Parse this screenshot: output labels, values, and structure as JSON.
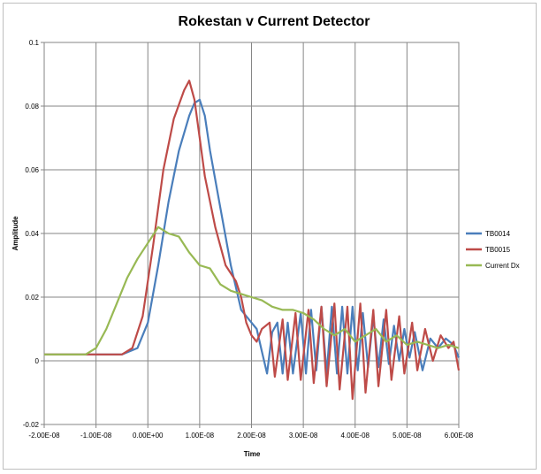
{
  "chart_data": {
    "type": "line",
    "title": "Rokestan v Current Detector",
    "xlabel": "Time",
    "ylabel": "Amplitude",
    "xlim": [
      -2e-08,
      6e-08
    ],
    "ylim": [
      -0.02,
      0.1
    ],
    "x_ticks": [
      -2e-08,
      -1e-08,
      0,
      1e-08,
      2e-08,
      3e-08,
      4e-08,
      5e-08,
      6e-08
    ],
    "x_tick_labels": [
      "-2.00E-08",
      "-1.00E-08",
      "0.00E+00",
      "1.00E-08",
      "2.00E-08",
      "3.00E-08",
      "4.00E-08",
      "5.00E-08",
      "6.00E-08"
    ],
    "y_ticks": [
      -0.02,
      0,
      0.02,
      0.04,
      0.06,
      0.08,
      0.1
    ],
    "y_tick_labels": [
      "-0.02",
      "0",
      "0.02",
      "0.04",
      "0.06",
      "0.08",
      "0.1"
    ],
    "grid": "horizontal-and-vertical",
    "legend_position": "right",
    "series": [
      {
        "name": "TB0014",
        "color": "#4a7ebb",
        "points": [
          [
            -2e-08,
            0.002
          ],
          [
            -1.5e-08,
            0.002
          ],
          [
            -1e-08,
            0.002
          ],
          [
            -5e-09,
            0.002
          ],
          [
            -2e-09,
            0.004
          ],
          [
            0,
            0.012
          ],
          [
            2e-09,
            0.03
          ],
          [
            4e-09,
            0.05
          ],
          [
            6e-09,
            0.066
          ],
          [
            8e-09,
            0.077
          ],
          [
            9e-09,
            0.081
          ],
          [
            1e-08,
            0.082
          ],
          [
            1.1e-08,
            0.077
          ],
          [
            1.2e-08,
            0.066
          ],
          [
            1.4e-08,
            0.048
          ],
          [
            1.6e-08,
            0.03
          ],
          [
            1.8e-08,
            0.016
          ],
          [
            2e-08,
            0.012
          ],
          [
            2.1e-08,
            0.01
          ],
          [
            2.2e-08,
            0.003
          ],
          [
            2.3e-08,
            -0.004
          ],
          [
            2.4e-08,
            0.009
          ],
          [
            2.5e-08,
            0.012
          ],
          [
            2.6e-08,
            -0.004
          ],
          [
            2.7e-08,
            0.012
          ],
          [
            2.8e-08,
            -0.004
          ],
          [
            2.95e-08,
            0.015
          ],
          [
            3.05e-08,
            -0.004
          ],
          [
            3.15e-08,
            0.016
          ],
          [
            3.25e-08,
            -0.003
          ],
          [
            3.35e-08,
            0.017
          ],
          [
            3.45e-08,
            -0.004
          ],
          [
            3.55e-08,
            0.017
          ],
          [
            3.65e-08,
            -0.004
          ],
          [
            3.75e-08,
            0.017
          ],
          [
            3.85e-08,
            -0.004
          ],
          [
            3.95e-08,
            0.017
          ],
          [
            4.05e-08,
            -0.003
          ],
          [
            4.15e-08,
            0.015
          ],
          [
            4.25e-08,
            -0.002
          ],
          [
            4.35e-08,
            0.014
          ],
          [
            4.45e-08,
            -0.002
          ],
          [
            4.55e-08,
            0.013
          ],
          [
            4.65e-08,
            -0.001
          ],
          [
            4.75e-08,
            0.011
          ],
          [
            4.85e-08,
            0.0
          ],
          [
            4.95e-08,
            0.01
          ],
          [
            5.05e-08,
            0.001
          ],
          [
            5.15e-08,
            0.009
          ],
          [
            5.3e-08,
            -0.003
          ],
          [
            5.45e-08,
            0.007
          ],
          [
            5.6e-08,
            0.004
          ],
          [
            5.75e-08,
            0.007
          ],
          [
            5.9e-08,
            0.005
          ],
          [
            6e-08,
            0.001
          ]
        ]
      },
      {
        "name": "TB0015",
        "color": "#be4b48",
        "points": [
          [
            -2e-08,
            0.002
          ],
          [
            -1.5e-08,
            0.002
          ],
          [
            -1e-08,
            0.002
          ],
          [
            -5e-09,
            0.002
          ],
          [
            -3e-09,
            0.004
          ],
          [
            -1e-09,
            0.014
          ],
          [
            1e-09,
            0.036
          ],
          [
            3e-09,
            0.06
          ],
          [
            5e-09,
            0.076
          ],
          [
            7e-09,
            0.085
          ],
          [
            8e-09,
            0.088
          ],
          [
            9e-09,
            0.082
          ],
          [
            1e-08,
            0.07
          ],
          [
            1.1e-08,
            0.058
          ],
          [
            1.3e-08,
            0.042
          ],
          [
            1.5e-08,
            0.03
          ],
          [
            1.7e-08,
            0.025
          ],
          [
            1.8e-08,
            0.02
          ],
          [
            1.9e-08,
            0.012
          ],
          [
            2e-08,
            0.008
          ],
          [
            2.1e-08,
            0.006
          ],
          [
            2.2e-08,
            0.01
          ],
          [
            2.35e-08,
            0.012
          ],
          [
            2.45e-08,
            -0.005
          ],
          [
            2.6e-08,
            0.013
          ],
          [
            2.7e-08,
            -0.006
          ],
          [
            2.85e-08,
            0.015
          ],
          [
            2.95e-08,
            -0.006
          ],
          [
            3.1e-08,
            0.016
          ],
          [
            3.2e-08,
            -0.007
          ],
          [
            3.35e-08,
            0.017
          ],
          [
            3.45e-08,
            -0.008
          ],
          [
            3.6e-08,
            0.018
          ],
          [
            3.7e-08,
            -0.009
          ],
          [
            3.85e-08,
            0.017
          ],
          [
            3.95e-08,
            -0.012
          ],
          [
            4.1e-08,
            0.018
          ],
          [
            4.2e-08,
            -0.01
          ],
          [
            4.35e-08,
            0.016
          ],
          [
            4.45e-08,
            -0.008
          ],
          [
            4.6e-08,
            0.016
          ],
          [
            4.7e-08,
            -0.006
          ],
          [
            4.85e-08,
            0.014
          ],
          [
            4.95e-08,
            -0.004
          ],
          [
            5.1e-08,
            0.012
          ],
          [
            5.2e-08,
            -0.003
          ],
          [
            5.35e-08,
            0.01
          ],
          [
            5.5e-08,
            0.0
          ],
          [
            5.65e-08,
            0.008
          ],
          [
            5.8e-08,
            0.004
          ],
          [
            5.9e-08,
            0.006
          ],
          [
            6e-08,
            -0.003
          ]
        ]
      },
      {
        "name": "Current Dx",
        "color": "#98b954",
        "points": [
          [
            -2e-08,
            0.002
          ],
          [
            -1.5e-08,
            0.002
          ],
          [
            -1.2e-08,
            0.002
          ],
          [
            -1e-08,
            0.004
          ],
          [
            -8e-09,
            0.01
          ],
          [
            -6e-09,
            0.018
          ],
          [
            -4e-09,
            0.026
          ],
          [
            -2e-09,
            0.032
          ],
          [
            0,
            0.037
          ],
          [
            2e-09,
            0.042
          ],
          [
            4e-09,
            0.04
          ],
          [
            6e-09,
            0.039
          ],
          [
            8e-09,
            0.034
          ],
          [
            1e-08,
            0.03
          ],
          [
            1.2e-08,
            0.029
          ],
          [
            1.4e-08,
            0.024
          ],
          [
            1.6e-08,
            0.022
          ],
          [
            1.8e-08,
            0.021
          ],
          [
            2e-08,
            0.02
          ],
          [
            2.2e-08,
            0.019
          ],
          [
            2.4e-08,
            0.017
          ],
          [
            2.6e-08,
            0.016
          ],
          [
            2.8e-08,
            0.016
          ],
          [
            3e-08,
            0.015
          ],
          [
            3.2e-08,
            0.013
          ],
          [
            3.4e-08,
            0.01
          ],
          [
            3.6e-08,
            0.008
          ],
          [
            3.8e-08,
            0.01
          ],
          [
            4e-08,
            0.006
          ],
          [
            4.2e-08,
            0.008
          ],
          [
            4.4e-08,
            0.01
          ],
          [
            4.6e-08,
            0.006
          ],
          [
            4.8e-08,
            0.008
          ],
          [
            5e-08,
            0.005
          ],
          [
            5.2e-08,
            0.006
          ],
          [
            5.4e-08,
            0.005
          ],
          [
            5.6e-08,
            0.004
          ],
          [
            5.8e-08,
            0.005
          ],
          [
            6e-08,
            0.004
          ]
        ]
      }
    ]
  }
}
